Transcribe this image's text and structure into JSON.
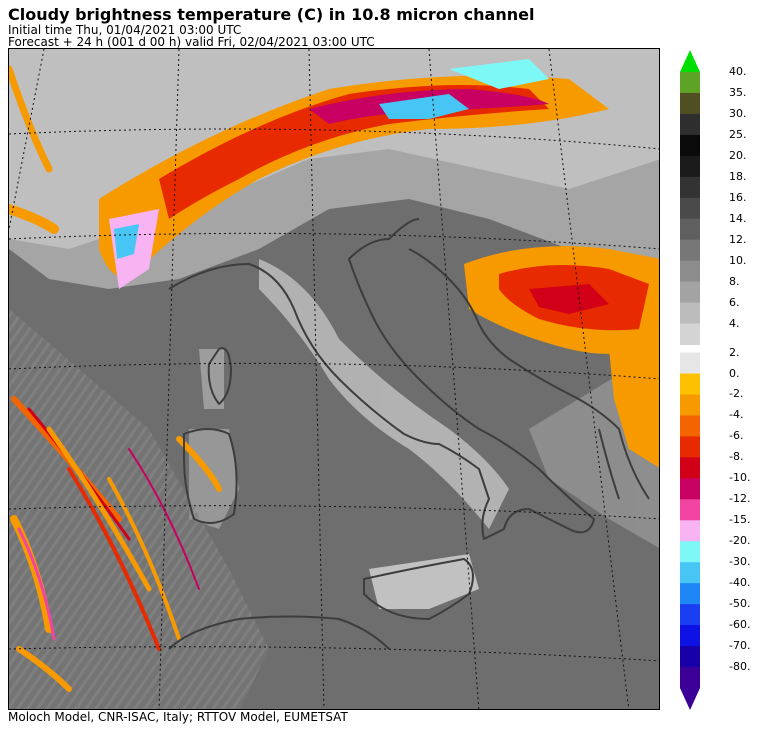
{
  "header": {
    "title": "Cloudy brightness temperature (C) in   10.8 micron channel",
    "initial_time": "Initial time  Thu, 01/04/2021  03:00 UTC",
    "forecast": "Forecast  +  24 h  (001 d 00 h)  valid Fri, 02/04/2021 03:00 UTC"
  },
  "footer": {
    "credits": "Moloch Model, CNR-ISAC, Italy; RTTOV Model, EUMETSAT"
  },
  "colorbar": {
    "entries": [
      {
        "label": "40.",
        "color": "#5fa326"
      },
      {
        "label": "35.",
        "color": "#4f4f22"
      },
      {
        "label": "30.",
        "color": "#2e2e2e"
      },
      {
        "label": "25.",
        "color": "#0a0a0a"
      },
      {
        "label": "20.",
        "color": "#1b1b1b"
      },
      {
        "label": "18.",
        "color": "#333333"
      },
      {
        "label": "16.",
        "color": "#4a4a4a"
      },
      {
        "label": "14.",
        "color": "#5f5f5f"
      },
      {
        "label": "12.",
        "color": "#777777"
      },
      {
        "label": "10.",
        "color": "#8c8c8c"
      },
      {
        "label": "8.",
        "color": "#a3a3a3"
      },
      {
        "label": "6.",
        "color": "#bcbcbc"
      },
      {
        "label": "4.",
        "color": "#d4d4d4"
      },
      {
        "label": "2.",
        "color": "#e6e6e6"
      },
      {
        "label": "0.",
        "color": "#fec100"
      },
      {
        "label": "-2.",
        "color": "#f69a00"
      },
      {
        "label": "-4.",
        "color": "#f36500"
      },
      {
        "label": "-6.",
        "color": "#e82a00"
      },
      {
        "label": "-8.",
        "color": "#d10018"
      },
      {
        "label": "-10.",
        "color": "#c80062"
      },
      {
        "label": "-12.",
        "color": "#f245a2"
      },
      {
        "label": "-15.",
        "color": "#f7b3f2"
      },
      {
        "label": "-20.",
        "color": "#7ef7f7"
      },
      {
        "label": "-30.",
        "color": "#47c5f5"
      },
      {
        "label": "-40.",
        "color": "#1d87f5"
      },
      {
        "label": "-50.",
        "color": "#1a3ef2"
      },
      {
        "label": "-60.",
        "color": "#0e12e4"
      },
      {
        "label": "-70.",
        "color": "#1800a8"
      },
      {
        "label": "-80.",
        "color": "#3b0096"
      }
    ],
    "top_arrow_color": "#00e000",
    "bottom_arrow_color": "#3b0096"
  }
}
